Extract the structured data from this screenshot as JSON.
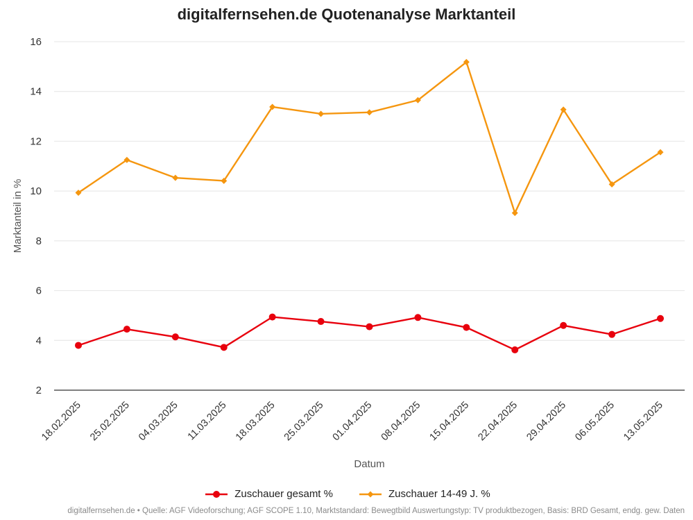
{
  "chart_data": {
    "type": "line",
    "title": "digitalfernsehen.de Quotenanalyse Marktanteil",
    "xlabel": "Datum",
    "ylabel": "Marktanteil in %",
    "ylim": [
      2,
      16
    ],
    "yticks": [
      2,
      4,
      6,
      8,
      10,
      12,
      14,
      16
    ],
    "grid": true,
    "legend_position": "bottom",
    "categories": [
      "18.02.2025",
      "25.02.2025",
      "04.03.2025",
      "11.03.2025",
      "18.03.2025",
      "25.03.2025",
      "01.04.2025",
      "08.04.2025",
      "15.04.2025",
      "22.04.2025",
      "29.04.2025",
      "06.05.2025",
      "13.05.2025"
    ],
    "series": [
      {
        "name": "Zuschauer gesamt %",
        "color": "#e8000d",
        "marker": "circle",
        "values": [
          3.8,
          4.45,
          4.14,
          3.72,
          4.94,
          4.76,
          4.55,
          4.92,
          4.52,
          3.62,
          4.6,
          4.24,
          4.88
        ]
      },
      {
        "name": "Zuschauer 14-49 J. %",
        "color": "#f5960f",
        "marker": "diamond",
        "values": [
          9.93,
          11.25,
          10.53,
          10.41,
          13.38,
          13.1,
          13.16,
          13.65,
          15.18,
          9.12,
          13.27,
          10.27,
          11.56
        ]
      }
    ]
  },
  "credits": "digitalfernsehen.de • Quelle: AGF Videoforschung; AGF SCOPE 1.10, Marktstandard: Bewegtbild Auswertungstyp: TV produktbezogen, Basis: BRD Gesamt, endg. gew. Daten"
}
